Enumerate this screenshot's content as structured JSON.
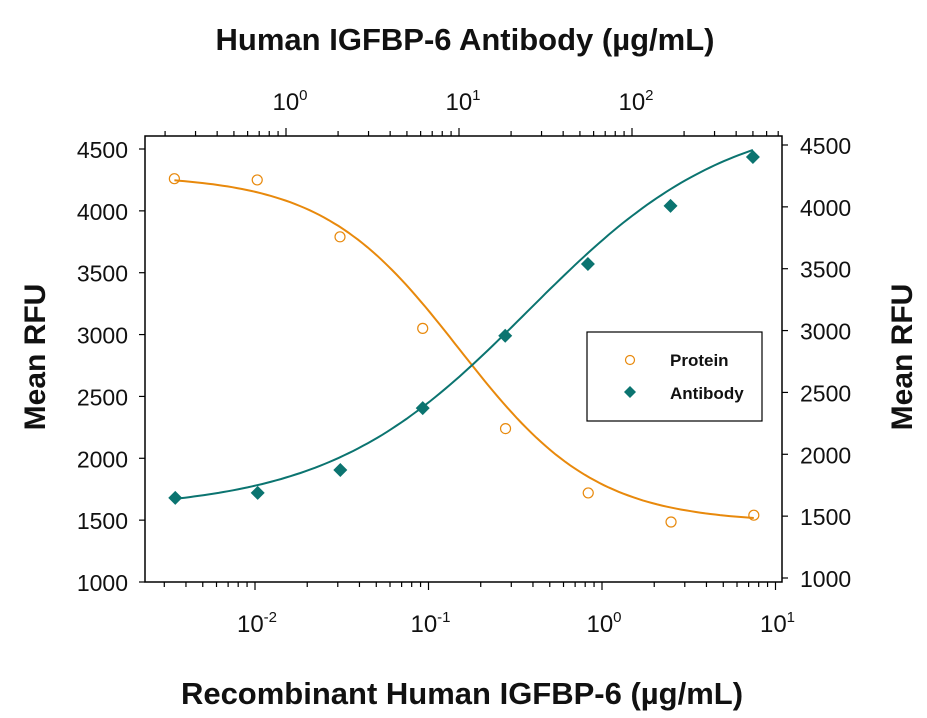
{
  "chart_data": {
    "type": "scatter",
    "title": "",
    "top_axis": {
      "label": "Human IGFBP-6 Antibody (µg/mL)",
      "scale": "log",
      "range": [
        0.2,
        800
      ],
      "ticks": [
        {
          "value": 1,
          "label_base": "10",
          "label_exp": "0"
        },
        {
          "value": 10,
          "label_base": "10",
          "label_exp": "1"
        },
        {
          "value": 100,
          "label_base": "10",
          "label_exp": "2"
        }
      ]
    },
    "bottom_axis": {
      "label": "Recombinant Human IGFBP-6 (µg/mL)",
      "scale": "log",
      "range": [
        0.0024,
        11
      ],
      "ticks": [
        {
          "value": 0.01,
          "label_base": "10",
          "label_exp": "-2"
        },
        {
          "value": 0.1,
          "label_base": "10",
          "label_exp": "-1"
        },
        {
          "value": 1,
          "label_base": "10",
          "label_exp": "0"
        },
        {
          "value": 10,
          "label_base": "10",
          "label_exp": "1"
        }
      ]
    },
    "left_axis": {
      "label": "Mean RFU",
      "range": [
        1000,
        4600
      ],
      "ticks": [
        "1000",
        "1500",
        "2000",
        "2500",
        "3000",
        "3500",
        "4000",
        "4500"
      ]
    },
    "right_axis": {
      "label": "Mean RFU",
      "range": [
        1000,
        4600
      ],
      "ticks": [
        "1000",
        "1500",
        "2000",
        "2500",
        "3000",
        "3500",
        "4000",
        "4500"
      ]
    },
    "legend": {
      "position": "center-right",
      "entries": [
        {
          "name": "Protein",
          "marker": "open-circle"
        },
        {
          "name": "Antibody",
          "marker": "filled-diamond"
        }
      ]
    },
    "grid": false,
    "series": [
      {
        "name": "Protein",
        "axis": "bottom",
        "color": "#E8890C",
        "marker": "open-circle",
        "x": [
          0.00343,
          0.0103,
          0.0309,
          0.0926,
          0.278,
          0.833,
          2.5,
          7.5
        ],
        "y": [
          4260,
          4250,
          3790,
          3050,
          2240,
          1720,
          1485,
          1540
        ],
        "fit": {
          "top": 4290,
          "bottom": 1480,
          "ec50": 0.15,
          "hill": -1.1
        }
      },
      {
        "name": "Antibody",
        "axis": "top",
        "color": "#0B7470",
        "marker": "filled-diamond",
        "x": [
          0.229,
          0.686,
          2.06,
          6.17,
          18.5,
          55.6,
          167,
          500
        ],
        "y": [
          1680,
          1720,
          1905,
          2405,
          2990,
          3570,
          4040,
          4435
        ],
        "fit": {
          "top": 4800,
          "bottom": 1580,
          "ec50": 25,
          "hill": 0.75
        }
      }
    ]
  }
}
